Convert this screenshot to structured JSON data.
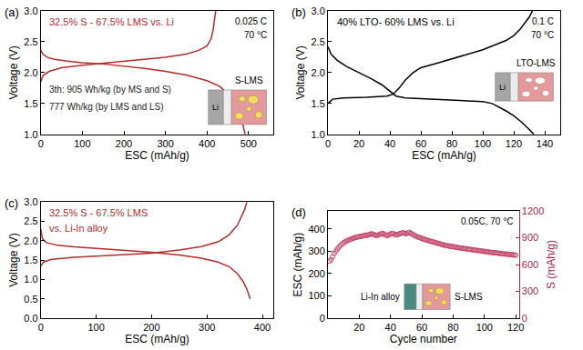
{
  "chart_data": [
    {
      "type": "line",
      "title": "(a)",
      "xlabel": "ESC (mAh/g)",
      "ylabel": "Voltage (V)",
      "xlim": [
        0,
        560
      ],
      "xticks": [
        0,
        100,
        200,
        300,
        400,
        500
      ],
      "ylim": [
        1,
        3
      ],
      "yticks": [
        {
          "value": 1,
          "label": "1.0"
        },
        1.5,
        {
          "value": 2,
          "label": "2.0"
        },
        2.5,
        {
          "value": 3,
          "label": "3.0"
        }
      ],
      "annotations": [
        "32.5% S - 67.5% LMS vs. Li",
        "0.025 C",
        "70 °C",
        "3th: 905 Wh/kg (by MS and S)",
        "777 Wh/kg (by LMS and LS)",
        "Li",
        "S-LMS"
      ],
      "series": [
        {
          "color": "#b22d2d",
          "x": [
            0,
            5,
            15,
            30,
            60,
            100,
            150,
            200,
            250,
            300,
            350,
            400,
            430,
            450,
            465,
            475,
            485,
            492
          ],
          "values": [
            2.36,
            2.3,
            2.25,
            2.22,
            2.19,
            2.16,
            2.14,
            2.11,
            2.07,
            2.02,
            1.96,
            1.87,
            1.78,
            1.66,
            1.52,
            1.38,
            1.2,
            1.0
          ]
        },
        {
          "color": "#b22d2d",
          "x": [
            0,
            5,
            20,
            50,
            100,
            150,
            200,
            250,
            300,
            350,
            380,
            400,
            410,
            415,
            418,
            421
          ],
          "values": [
            1.85,
            1.95,
            2.02,
            2.08,
            2.12,
            2.15,
            2.18,
            2.21,
            2.25,
            2.3,
            2.36,
            2.43,
            2.55,
            2.7,
            2.85,
            3.0
          ]
        }
      ]
    },
    {
      "type": "line",
      "title": "(b)",
      "xlabel": "ESC (mAh/g)",
      "ylabel": "Voltage (V)",
      "xlim": [
        0,
        150
      ],
      "xticks": [
        0,
        20,
        40,
        60,
        80,
        100,
        120,
        140
      ],
      "ylim": [
        1,
        3
      ],
      "yticks": [
        {
          "value": 1,
          "label": "1.0"
        },
        1.5,
        {
          "value": 2,
          "label": "2.0"
        },
        2.5,
        {
          "value": 3,
          "label": "3.0"
        }
      ],
      "annotations": [
        "40% LTO- 60% LMS vs. Li",
        "0.1 C",
        "70 °C",
        "Li",
        "LTO-LMS"
      ],
      "series": [
        {
          "color": "#000000",
          "x": [
            0,
            2,
            6,
            12,
            20,
            28,
            35,
            40,
            44,
            50,
            70,
            90,
            100,
            106,
            110,
            115,
            120,
            125,
            130,
            133
          ],
          "values": [
            2.42,
            2.3,
            2.2,
            2.1,
            2.0,
            1.9,
            1.8,
            1.7,
            1.62,
            1.59,
            1.57,
            1.55,
            1.53,
            1.5,
            1.45,
            1.38,
            1.3,
            1.2,
            1.08,
            1.0
          ]
        },
        {
          "color": "#000000",
          "x": [
            0,
            3,
            10,
            25,
            38,
            42,
            46,
            50,
            55,
            60,
            70,
            80,
            90,
            100,
            108,
            115,
            120,
            124,
            127,
            130,
            132
          ],
          "values": [
            1.5,
            1.57,
            1.59,
            1.6,
            1.62,
            1.65,
            1.75,
            1.88,
            2.0,
            2.08,
            2.15,
            2.22,
            2.3,
            2.37,
            2.45,
            2.52,
            2.6,
            2.7,
            2.8,
            2.9,
            3.0
          ]
        }
      ]
    },
    {
      "type": "line",
      "title": "(c)",
      "xlabel": "ESC (mAh/g)",
      "ylabel": "Voltage (V)",
      "xlim": [
        0,
        420
      ],
      "xticks": [
        0,
        100,
        200,
        300,
        400
      ],
      "ylim": [
        0,
        3
      ],
      "yticks": [
        {
          "value": 0,
          "label": "0.0"
        },
        0.5,
        {
          "value": 1,
          "label": "1.0"
        },
        1.5,
        {
          "value": 2,
          "label": "2.0"
        },
        2.5,
        {
          "value": 3,
          "label": "3.0"
        }
      ],
      "annotations": [
        "32.5% S - 67.5% LMS",
        "vs. Li-In alloy"
      ],
      "series": [
        {
          "color": "#b22d2d",
          "x": [
            0,
            3,
            10,
            30,
            60,
            100,
            150,
            200,
            250,
            290,
            320,
            340,
            355,
            365,
            372,
            378
          ],
          "values": [
            2.3,
            2.05,
            1.95,
            1.88,
            1.84,
            1.8,
            1.76,
            1.7,
            1.63,
            1.55,
            1.45,
            1.33,
            1.15,
            0.95,
            0.75,
            0.5
          ]
        },
        {
          "color": "#b22d2d",
          "x": [
            0,
            5,
            20,
            60,
            100,
            150,
            200,
            250,
            290,
            320,
            340,
            355,
            362,
            368,
            372
          ],
          "values": [
            1.35,
            1.45,
            1.52,
            1.57,
            1.6,
            1.64,
            1.68,
            1.76,
            1.85,
            1.97,
            2.15,
            2.4,
            2.6,
            2.8,
            3.0
          ]
        }
      ]
    },
    {
      "type": "scatter",
      "title": "(d)",
      "xlabel": "Cycle number",
      "ylabel": "ESC (mAh/g)",
      "y2label": "S (mAh/g)",
      "xlim": [
        0,
        122
      ],
      "xticks": [
        20,
        40,
        60,
        80,
        100,
        120
      ],
      "ylim": [
        0,
        480
      ],
      "yticks": [
        0,
        100,
        200,
        300,
        400
      ],
      "y2lim": [
        0,
        1200
      ],
      "y2ticks": [
        0,
        300,
        600,
        900,
        1200
      ],
      "annotations": [
        "0.05C, 70 °C",
        "Li-In alloy",
        "S-LMS"
      ],
      "series": [
        {
          "color": "#c2466a",
          "marker": "circle-open",
          "x": [
            1,
            2,
            3,
            4,
            5,
            6,
            7,
            8,
            9,
            10,
            11,
            12,
            13,
            14,
            15,
            16,
            17,
            18,
            19,
            20,
            21,
            22,
            23,
            24,
            25,
            26,
            27,
            28,
            29,
            30,
            31,
            32,
            33,
            34,
            35,
            36,
            37,
            38,
            39,
            40,
            41,
            42,
            43,
            44,
            45,
            46,
            47,
            48,
            49,
            50,
            51,
            52,
            53,
            54,
            55,
            56,
            57,
            58,
            59,
            60,
            61,
            62,
            63,
            64,
            65,
            66,
            67,
            68,
            69,
            70,
            71,
            72,
            73,
            74,
            75,
            76,
            77,
            78,
            79,
            80,
            81,
            82,
            83,
            84,
            85,
            86,
            87,
            88,
            89,
            90,
            91,
            92,
            93,
            94,
            95,
            96,
            97,
            98,
            99,
            100,
            101,
            102,
            103,
            104,
            105,
            106,
            107,
            108,
            109,
            110,
            111,
            112,
            113,
            114,
            115,
            116,
            117,
            118,
            119,
            120
          ],
          "values": [
            255,
            262,
            275,
            290,
            300,
            310,
            318,
            325,
            332,
            338,
            342,
            346,
            350,
            352,
            355,
            358,
            360,
            362,
            364,
            365,
            367,
            368,
            370,
            372,
            371,
            374,
            376,
            378,
            375,
            373,
            370,
            372,
            375,
            378,
            380,
            376,
            372,
            370,
            374,
            377,
            380,
            378,
            375,
            373,
            376,
            379,
            381,
            383,
            380,
            378,
            382,
            385,
            380,
            376,
            372,
            368,
            365,
            362,
            360,
            357,
            355,
            352,
            350,
            348,
            346,
            344,
            342,
            340,
            338,
            336,
            334,
            332,
            330,
            328,
            326,
            325,
            324,
            322,
            321,
            320,
            319,
            318,
            316,
            315,
            314,
            313,
            312,
            311,
            310,
            309,
            308,
            307,
            306,
            305,
            304,
            303,
            302,
            301,
            300,
            299,
            298,
            297,
            296,
            295,
            294,
            294,
            293,
            292,
            291,
            290,
            289,
            288,
            288,
            287,
            286,
            285,
            285,
            284,
            283,
            282
          ]
        }
      ]
    }
  ]
}
